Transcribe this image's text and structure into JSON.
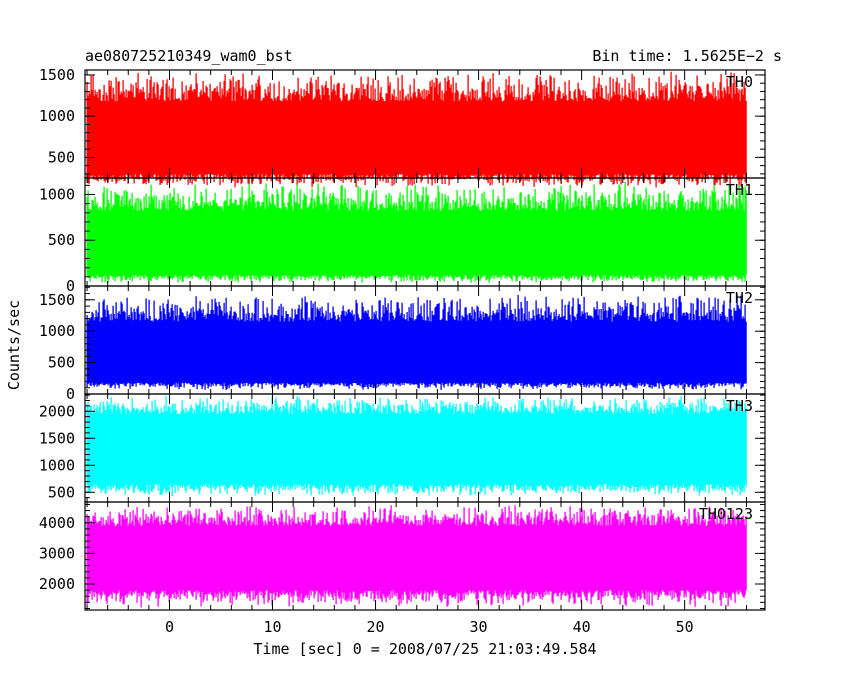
{
  "chart_data": {
    "type": "line",
    "title_left": "ae080725210349_wam0_bst",
    "title_right": "Bin time: 1.5625E−2 s",
    "ylabel": "Counts/sec",
    "xlabel": "Time [sec] 0 = 2008/07/25 21:03:49.584",
    "xlim": [
      -8.2,
      57.8
    ],
    "x_ticks": [
      "0",
      "10",
      "20",
      "30",
      "40",
      "50"
    ],
    "x_tick_values": [
      0,
      10,
      20,
      30,
      40,
      50
    ],
    "data_x_range": [
      -8.0,
      56.0
    ],
    "panels": [
      {
        "name": "TH0",
        "color": "#ff0000",
        "ylim": [
          250,
          1560
        ],
        "y_ticks": [
          "500",
          "1000",
          "1500"
        ],
        "y_tick_values": [
          500,
          1000,
          1500
        ],
        "envelope": {
          "base_low": 300,
          "base_high": 1180,
          "min_low": 130,
          "max_high": 1550
        }
      },
      {
        "name": "TH1",
        "color": "#00ff00",
        "ylim": [
          0,
          1180
        ],
        "y_ticks": [
          "0",
          "500",
          "1000"
        ],
        "y_tick_values": [
          0,
          500,
          1000
        ],
        "envelope": {
          "base_low": 120,
          "base_high": 820,
          "min_low": 30,
          "max_high": 1150
        }
      },
      {
        "name": "TH2",
        "color": "#0000ff",
        "ylim": [
          0,
          1720
        ],
        "y_ticks": [
          "0",
          "500",
          "1000",
          "1500"
        ],
        "y_tick_values": [
          0,
          500,
          1000,
          1500
        ],
        "envelope": {
          "base_low": 180,
          "base_high": 1150,
          "min_low": 60,
          "max_high": 1620
        }
      },
      {
        "name": "TH3",
        "color": "#00ffff",
        "ylim": [
          320,
          2320
        ],
        "y_ticks": [
          "500",
          "1000",
          "1500",
          "2000"
        ],
        "y_tick_values": [
          500,
          1000,
          1500,
          2000
        ],
        "envelope": {
          "base_low": 650,
          "base_high": 1950,
          "min_low": 420,
          "max_high": 2300
        }
      },
      {
        "name": "TH0123",
        "color": "#ff00ff",
        "ylim": [
          1150,
          4680
        ],
        "y_ticks": [
          "2000",
          "3000",
          "4000"
        ],
        "y_tick_values": [
          2000,
          3000,
          4000
        ],
        "envelope": {
          "base_low": 1800,
          "base_high": 3900,
          "min_low": 1230,
          "max_high": 4600
        }
      }
    ]
  }
}
